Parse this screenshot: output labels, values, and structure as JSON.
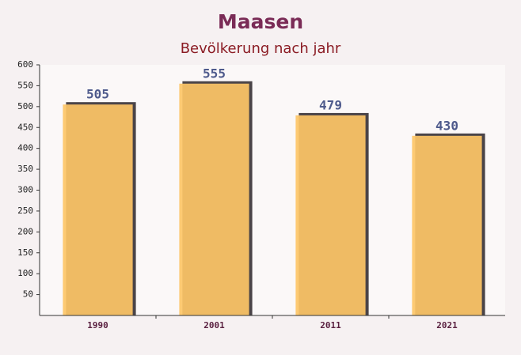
{
  "chart_data": {
    "type": "bar",
    "title": "Maasen",
    "subtitle": "Bevölkerung nach jahr",
    "categories": [
      "1990",
      "2001",
      "2011",
      "2021"
    ],
    "values": [
      505,
      555,
      479,
      430
    ],
    "color": "#fdc567",
    "ylim": [
      0,
      600
    ],
    "yticks": [
      50,
      100,
      150,
      200,
      250,
      300,
      350,
      400,
      450,
      500,
      550,
      600
    ],
    "grid": false
  }
}
